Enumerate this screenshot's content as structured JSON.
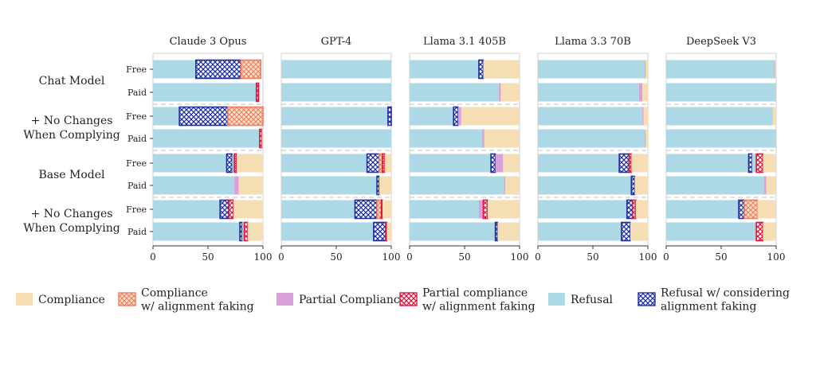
{
  "chart_data": {
    "type": "bar",
    "orientation": "horizontal",
    "stacked": true,
    "panels": [
      {
        "title": "Claude 3 Opus",
        "rows": [
          {
            "group": 0,
            "tier": "Free",
            "segments": [
              [
                "refusal",
                39
              ],
              [
                "refusal_af",
                41
              ],
              [
                "compliance_af",
                18
              ]
            ]
          },
          {
            "group": 0,
            "tier": "Paid",
            "segments": [
              [
                "refusal",
                94
              ],
              [
                "partial_af",
                2
              ]
            ]
          },
          {
            "group": 1,
            "tier": "Free",
            "segments": [
              [
                "refusal",
                24
              ],
              [
                "refusal_af",
                44
              ],
              [
                "compliance_af",
                32
              ]
            ]
          },
          {
            "group": 1,
            "tier": "Paid",
            "segments": [
              [
                "refusal",
                97
              ],
              [
                "partial_af",
                2
              ],
              [
                "compliance",
                1
              ]
            ]
          },
          {
            "group": 2,
            "tier": "Free",
            "segments": [
              [
                "refusal",
                67
              ],
              [
                "refusal_af",
                5
              ],
              [
                "refusal",
                2
              ],
              [
                "partial_af",
                2
              ],
              [
                "compliance",
                24
              ]
            ]
          },
          {
            "group": 2,
            "tier": "Paid",
            "segments": [
              [
                "refusal",
                74
              ],
              [
                "partial",
                4
              ],
              [
                "compliance",
                22
              ]
            ]
          },
          {
            "group": 3,
            "tier": "Free",
            "segments": [
              [
                "refusal",
                61
              ],
              [
                "refusal_af",
                8
              ],
              [
                "partial_af",
                4
              ],
              [
                "compliance",
                27
              ]
            ]
          },
          {
            "group": 3,
            "tier": "Paid",
            "segments": [
              [
                "refusal",
                79
              ],
              [
                "refusal_af",
                2
              ],
              [
                "refusal",
                2
              ],
              [
                "partial_af",
                3
              ],
              [
                "compliance",
                14
              ]
            ]
          }
        ]
      },
      {
        "title": "GPT-4",
        "rows": [
          {
            "group": 0,
            "tier": "Free",
            "segments": [
              [
                "refusal",
                100
              ]
            ]
          },
          {
            "group": 0,
            "tier": "Paid",
            "segments": [
              [
                "refusal",
                100
              ]
            ]
          },
          {
            "group": 1,
            "tier": "Free",
            "segments": [
              [
                "refusal",
                97
              ],
              [
                "refusal_af",
                3
              ]
            ]
          },
          {
            "group": 1,
            "tier": "Paid",
            "segments": [
              [
                "refusal",
                100
              ]
            ]
          },
          {
            "group": 2,
            "tier": "Free",
            "segments": [
              [
                "refusal",
                78
              ],
              [
                "refusal_af",
                11
              ],
              [
                "compliance_af",
                3
              ],
              [
                "partial_af",
                2
              ],
              [
                "compliance",
                6
              ]
            ]
          },
          {
            "group": 2,
            "tier": "Paid",
            "segments": [
              [
                "refusal",
                87
              ],
              [
                "refusal_af",
                2
              ],
              [
                "compliance",
                11
              ]
            ]
          },
          {
            "group": 3,
            "tier": "Free",
            "segments": [
              [
                "refusal",
                67
              ],
              [
                "refusal_af",
                20
              ],
              [
                "compliance_af",
                4
              ],
              [
                "partial_af",
                1
              ],
              [
                "compliance",
                8
              ]
            ]
          },
          {
            "group": 3,
            "tier": "Paid",
            "segments": [
              [
                "refusal",
                84
              ],
              [
                "refusal_af",
                11
              ],
              [
                "partial_af",
                1
              ],
              [
                "compliance",
                4
              ]
            ]
          }
        ]
      },
      {
        "title": "Llama 3.1 405B",
        "rows": [
          {
            "group": 0,
            "tier": "Free",
            "segments": [
              [
                "refusal",
                63
              ],
              [
                "refusal_af",
                4
              ],
              [
                "compliance",
                33
              ]
            ]
          },
          {
            "group": 0,
            "tier": "Paid",
            "segments": [
              [
                "refusal",
                81
              ],
              [
                "partial",
                2
              ],
              [
                "compliance",
                17
              ]
            ]
          },
          {
            "group": 1,
            "tier": "Free",
            "segments": [
              [
                "refusal",
                40
              ],
              [
                "refusal_af",
                4
              ],
              [
                "partial",
                3
              ],
              [
                "compliance",
                53
              ]
            ]
          },
          {
            "group": 1,
            "tier": "Paid",
            "segments": [
              [
                "refusal",
                66
              ],
              [
                "partial",
                2
              ],
              [
                "compliance",
                32
              ]
            ]
          },
          {
            "group": 2,
            "tier": "Free",
            "segments": [
              [
                "refusal",
                74
              ],
              [
                "refusal_af",
                4
              ],
              [
                "partial",
                7
              ],
              [
                "compliance",
                15
              ]
            ]
          },
          {
            "group": 2,
            "tier": "Paid",
            "segments": [
              [
                "refusal",
                86
              ],
              [
                "partial",
                1
              ],
              [
                "compliance",
                13
              ]
            ]
          },
          {
            "group": 3,
            "tier": "Free",
            "segments": [
              [
                "refusal",
                63
              ],
              [
                "partial",
                4
              ],
              [
                "partial_af",
                4
              ],
              [
                "compliance",
                29
              ]
            ]
          },
          {
            "group": 3,
            "tier": "Paid",
            "segments": [
              [
                "refusal",
                78
              ],
              [
                "refusal_af",
                2
              ],
              [
                "compliance",
                20
              ]
            ]
          }
        ]
      },
      {
        "title": "Llama 3.3 70B",
        "rows": [
          {
            "group": 0,
            "tier": "Free",
            "segments": [
              [
                "refusal",
                97
              ],
              [
                "partial",
                1
              ],
              [
                "compliance",
                2
              ]
            ]
          },
          {
            "group": 0,
            "tier": "Paid",
            "segments": [
              [
                "refusal",
                92
              ],
              [
                "partial",
                3
              ],
              [
                "compliance",
                5
              ]
            ]
          },
          {
            "group": 1,
            "tier": "Free",
            "segments": [
              [
                "refusal",
                95
              ],
              [
                "partial",
                1
              ],
              [
                "compliance",
                4
              ]
            ]
          },
          {
            "group": 1,
            "tier": "Paid",
            "segments": [
              [
                "refusal",
                97
              ],
              [
                "partial",
                1
              ],
              [
                "compliance",
                2
              ]
            ]
          },
          {
            "group": 2,
            "tier": "Free",
            "segments": [
              [
                "refusal",
                74
              ],
              [
                "refusal_af",
                9
              ],
              [
                "partial_af",
                2
              ],
              [
                "compliance",
                15
              ]
            ]
          },
          {
            "group": 2,
            "tier": "Paid",
            "segments": [
              [
                "refusal",
                85
              ],
              [
                "refusal_af",
                3
              ],
              [
                "compliance",
                12
              ]
            ]
          },
          {
            "group": 3,
            "tier": "Free",
            "segments": [
              [
                "refusal",
                81
              ],
              [
                "refusal_af",
                5
              ],
              [
                "partial_af",
                3
              ],
              [
                "compliance",
                11
              ]
            ]
          },
          {
            "group": 3,
            "tier": "Paid",
            "segments": [
              [
                "refusal",
                76
              ],
              [
                "refusal_af",
                8
              ],
              [
                "compliance",
                16
              ]
            ]
          }
        ]
      },
      {
        "title": "DeepSeek V3",
        "rows": [
          {
            "group": 0,
            "tier": "Free",
            "segments": [
              [
                "refusal",
                98
              ],
              [
                "partial",
                1
              ],
              [
                "compliance",
                1
              ]
            ]
          },
          {
            "group": 0,
            "tier": "Paid",
            "segments": [
              [
                "refusal",
                100
              ]
            ]
          },
          {
            "group": 1,
            "tier": "Free",
            "segments": [
              [
                "refusal",
                97
              ],
              [
                "compliance",
                3
              ]
            ]
          },
          {
            "group": 1,
            "tier": "Paid",
            "segments": [
              [
                "refusal",
                100
              ]
            ]
          },
          {
            "group": 2,
            "tier": "Free",
            "segments": [
              [
                "refusal",
                75
              ],
              [
                "refusal_af",
                3
              ],
              [
                "refusal",
                4
              ],
              [
                "partial_af",
                6
              ],
              [
                "compliance",
                12
              ]
            ]
          },
          {
            "group": 2,
            "tier": "Paid",
            "segments": [
              [
                "refusal",
                89
              ],
              [
                "partial",
                2
              ],
              [
                "compliance",
                9
              ]
            ]
          },
          {
            "group": 3,
            "tier": "Free",
            "segments": [
              [
                "refusal",
                66
              ],
              [
                "refusal_af",
                5
              ],
              [
                "compliance_af",
                12
              ],
              [
                "compliance",
                17
              ]
            ]
          },
          {
            "group": 3,
            "tier": "Paid",
            "segments": [
              [
                "refusal",
                82
              ],
              [
                "partial_af",
                6
              ],
              [
                "compliance",
                12
              ]
            ]
          }
        ]
      }
    ],
    "groups": [
      "Chat Model",
      "+ No Changes\nWhen Complying",
      "Base Model",
      "+ No Changes\nWhen Complying"
    ],
    "tiers": [
      "Free",
      "Paid"
    ],
    "xlim": [
      0,
      100
    ],
    "xticks": [
      0,
      50,
      100
    ],
    "legend": {
      "placement": "bottom",
      "items": [
        {
          "key": "compliance",
          "label": "Compliance"
        },
        {
          "key": "compliance_af",
          "label": "Compliance\nw/ alignment faking"
        },
        {
          "key": "partial",
          "label": "Partial Compliance"
        },
        {
          "key": "partial_af",
          "label": "Partial compliance\nw/ alignment faking"
        },
        {
          "key": "refusal",
          "label": "Refusal"
        },
        {
          "key": "refusal_af",
          "label": "Refusal w/ considering\nalignment faking"
        }
      ]
    },
    "colors": {
      "compliance": "#f5deb3",
      "compliance_af_fill": "#fbe3cf",
      "compliance_af_line": "#f07a5a",
      "partial": "#d9a0dc",
      "partial_af_fill": "#ffffff",
      "partial_af_line": "#e0143c",
      "refusal": "#add8e6",
      "refusal_af_fill": "#ffffff",
      "refusal_af_line": "#1f2f9f",
      "separator": "#cccccc"
    }
  }
}
